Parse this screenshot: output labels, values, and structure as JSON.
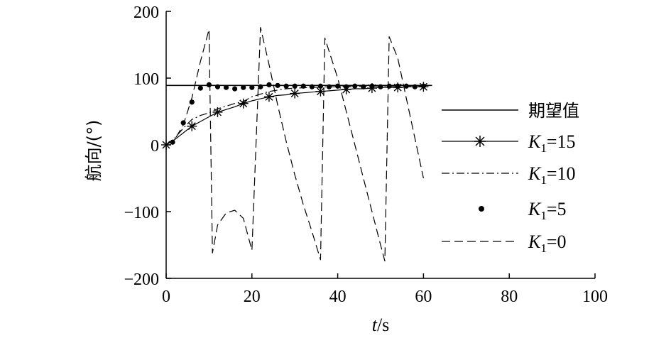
{
  "chart_data": {
    "type": "line",
    "xlabel_var": "t",
    "xlabel_unit": "/s",
    "ylabel": "航向/(°)",
    "xlim": [
      0,
      100
    ],
    "ylim": [
      -200,
      200
    ],
    "x_ticks": [
      "0",
      "20",
      "40",
      "60",
      "80",
      "100"
    ],
    "y_ticks": [
      "200",
      "100",
      "0",
      "−100",
      "−200"
    ],
    "grid": false,
    "legend_position": "right",
    "series": [
      {
        "name": "期望值",
        "style": "solid",
        "x": [
          0,
          62
        ],
        "y": [
          89,
          89
        ]
      },
      {
        "name": "K1=15",
        "style": "solid-star",
        "x": [
          0,
          2,
          4,
          6,
          8,
          10,
          12,
          14,
          16,
          18,
          20,
          22,
          24,
          26,
          28,
          30,
          32,
          34,
          36,
          38,
          40,
          42,
          44,
          46,
          48,
          50,
          52,
          54,
          56,
          58,
          60
        ],
        "y": [
          0,
          8,
          18,
          28,
          35,
          42,
          49,
          53,
          57,
          62,
          66,
          69,
          72,
          74,
          75,
          77,
          78,
          79,
          80,
          81,
          82,
          83,
          84,
          84,
          85,
          86,
          86,
          86,
          87,
          87,
          87
        ]
      },
      {
        "name": "K1=10",
        "style": "dashdot",
        "x": [
          0,
          2,
          4,
          6,
          8,
          10,
          12,
          14,
          16,
          18,
          20,
          22,
          24,
          26,
          28,
          30,
          34,
          38,
          42,
          46,
          50,
          54,
          58,
          60
        ],
        "y": [
          0,
          10,
          25,
          38,
          44,
          48,
          54,
          58,
          62,
          65,
          72,
          76,
          80,
          82,
          84,
          85,
          86,
          87,
          87,
          88,
          88,
          88,
          88,
          88
        ]
      },
      {
        "name": "K1=5",
        "style": "dots",
        "x": [
          0,
          1.5,
          4,
          6,
          8,
          10,
          12,
          14,
          16,
          18,
          20,
          22,
          24,
          26,
          28,
          30,
          32,
          34,
          36,
          38,
          40,
          42,
          44,
          46,
          48,
          50,
          52,
          54,
          56,
          58,
          60
        ],
        "y": [
          0,
          4,
          33,
          64,
          85,
          90,
          87,
          86,
          84,
          86,
          86,
          87,
          90,
          89,
          88,
          88,
          88,
          87,
          88,
          87,
          88,
          87,
          88,
          87,
          88,
          87,
          88,
          88,
          88,
          87,
          88
        ],
        "markers_x": [
          1.5,
          4,
          6,
          8,
          10,
          12,
          14,
          16,
          18,
          20,
          22,
          24,
          26,
          28,
          30,
          32,
          34,
          36,
          38,
          40,
          42,
          44,
          46,
          48,
          50,
          52,
          54,
          56,
          58,
          60
        ]
      },
      {
        "name": "K1=0",
        "style": "dashed",
        "x": [
          0,
          2,
          4,
          6,
          8,
          10,
          10.8,
          12,
          14,
          16,
          18,
          20,
          22,
          24,
          26,
          28,
          30,
          32,
          34,
          36,
          37,
          40,
          42,
          44,
          46,
          48,
          50,
          51,
          52,
          54,
          56,
          58,
          60
        ],
        "y": [
          0,
          8,
          30,
          70,
          125,
          173,
          -162,
          -120,
          -102,
          -98,
          -110,
          -158,
          176,
          120,
          60,
          5,
          -45,
          -90,
          -130,
          -172,
          160,
          100,
          50,
          0,
          -50,
          -100,
          -150,
          -174,
          162,
          130,
          70,
          10,
          -50
        ]
      }
    ]
  },
  "legend": {
    "items": [
      {
        "label": "期望值"
      },
      {
        "label_main": "K",
        "label_sub": "1",
        "label_rest": "=15"
      },
      {
        "label_main": "K",
        "label_sub": "1",
        "label_rest": "=10"
      },
      {
        "label_main": "K",
        "label_sub": "1",
        "label_rest": "=5"
      },
      {
        "label_main": "K",
        "label_sub": "1",
        "label_rest": "=0"
      }
    ]
  }
}
